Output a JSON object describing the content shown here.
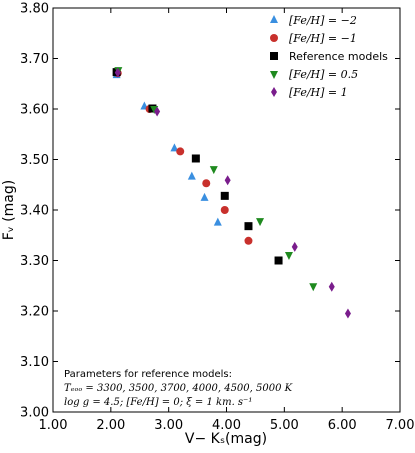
{
  "chart_data": {
    "type": "scatter",
    "xlabel": "V− Kₛ(mag)",
    "ylabel": "Fᵥ (mag)",
    "xlim": [
      1.0,
      7.0
    ],
    "ylim": [
      3.0,
      3.8
    ],
    "x_ticks": [
      "1.00",
      "2.00",
      "3.00",
      "4.00",
      "5.00",
      "6.00",
      "7.00"
    ],
    "y_ticks": [
      "3.00",
      "3.10",
      "3.20",
      "3.30",
      "3.40",
      "3.50",
      "3.60",
      "3.70",
      "3.80"
    ],
    "grid": false,
    "legend_position": "top-right",
    "series": [
      {
        "name": "[Fe/H] = −2",
        "marker": "triangle-up",
        "color": "#3a8fe0",
        "points": [
          [
            2.1,
            3.667
          ],
          [
            2.58,
            3.605
          ],
          [
            3.1,
            3.522
          ],
          [
            3.4,
            3.466
          ],
          [
            3.62,
            3.424
          ],
          [
            3.85,
            3.375
          ]
        ]
      },
      {
        "name": "[Fe/H] = −1",
        "marker": "circle",
        "color": "#c8302c",
        "points": [
          [
            2.12,
            3.671
          ],
          [
            2.67,
            3.6
          ],
          [
            3.2,
            3.516
          ],
          [
            3.65,
            3.453
          ],
          [
            3.97,
            3.4
          ],
          [
            4.38,
            3.339
          ]
        ]
      },
      {
        "name": "Reference models",
        "marker": "square",
        "color": "#000000",
        "points": [
          [
            2.1,
            3.673
          ],
          [
            2.72,
            3.601
          ],
          [
            3.47,
            3.502
          ],
          [
            3.97,
            3.428
          ],
          [
            4.38,
            3.368
          ],
          [
            4.9,
            3.3
          ]
        ]
      },
      {
        "name": "[Fe/H] = 0.5",
        "marker": "triangle-down",
        "color": "#1f8a1f",
        "points": [
          [
            2.13,
            3.677
          ],
          [
            2.75,
            3.6
          ],
          [
            3.78,
            3.481
          ],
          [
            4.58,
            3.378
          ],
          [
            5.08,
            3.311
          ],
          [
            5.5,
            3.249
          ]
        ]
      },
      {
        "name": "[Fe/H] = 1",
        "marker": "diamond",
        "color": "#7a1d8c",
        "points": [
          [
            2.12,
            3.672
          ],
          [
            2.8,
            3.595
          ],
          [
            4.02,
            3.459
          ],
          [
            5.18,
            3.327
          ],
          [
            5.82,
            3.248
          ],
          [
            6.1,
            3.195
          ]
        ]
      }
    ],
    "legend": [
      {
        "math": "[Fe/H] = −2"
      },
      {
        "math": "[Fe/H] = −1"
      },
      {
        "text": "Reference models"
      },
      {
        "math": "[Fe/H] = 0.5"
      },
      {
        "math": "[Fe/H] = 1"
      }
    ],
    "annotation": {
      "line1": "Parameters for reference models:",
      "line2": "Tₑₒₒ = 3300, 3500, 3700, 4000, 4500, 5000 K",
      "line3": "log g = 4.5; [Fe/H] = 0; ξ = 1 km. s⁻¹"
    }
  }
}
